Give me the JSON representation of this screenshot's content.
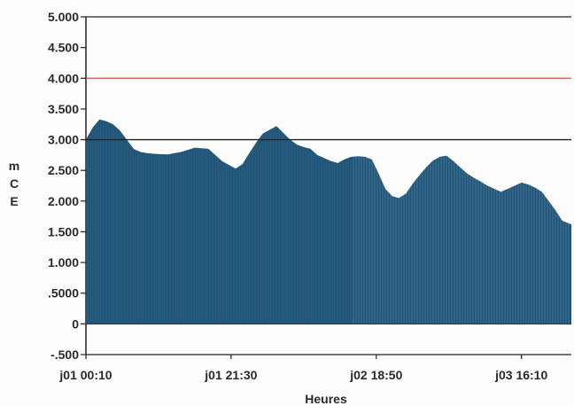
{
  "chart_data": {
    "type": "area",
    "title": "",
    "xlabel": "Heures",
    "ylabel": "mCE",
    "ylim": [
      -0.5,
      5.0
    ],
    "y_ticks": [
      "5.000",
      "4.500",
      "4.000",
      "3.500",
      "3.000",
      "2.500",
      "2.000",
      "1.500",
      "1.000",
      ".5000",
      "0",
      "-.500"
    ],
    "x_ticks": [
      "j01 00:10",
      "j01 21:30",
      "j02 18:50",
      "j03 16:10"
    ],
    "x_tick_positions": [
      0,
      21.33,
      42.67,
      64
    ],
    "x_range": [
      0,
      71.33
    ],
    "grid": false,
    "reference_lines": [
      {
        "value": 4.0,
        "color": "#d2553e"
      },
      {
        "value": 3.0,
        "color": "#222222"
      }
    ],
    "fill_color": "#1d5478",
    "series": [
      {
        "x": [
          0,
          1,
          2,
          3,
          4,
          5,
          6,
          7,
          8,
          9,
          10,
          12,
          14,
          16,
          18,
          20,
          22,
          23,
          24,
          25,
          26,
          28,
          30,
          31,
          32,
          33,
          34,
          35,
          36,
          37,
          38,
          39,
          40,
          41,
          42,
          43,
          44,
          45,
          46,
          47,
          48,
          49,
          50,
          51,
          52,
          53,
          54,
          55,
          56,
          57,
          58,
          59,
          60,
          61,
          62,
          63,
          64,
          65,
          66,
          67,
          68,
          69,
          70,
          71.33
        ],
        "values": [
          3.0,
          3.2,
          3.33,
          3.3,
          3.25,
          3.15,
          3.0,
          2.85,
          2.8,
          2.78,
          2.77,
          2.76,
          2.8,
          2.87,
          2.85,
          2.65,
          2.53,
          2.6,
          2.78,
          2.95,
          3.1,
          3.22,
          3.0,
          2.92,
          2.88,
          2.85,
          2.75,
          2.7,
          2.65,
          2.62,
          2.68,
          2.72,
          2.73,
          2.72,
          2.68,
          2.45,
          2.2,
          2.08,
          2.05,
          2.12,
          2.28,
          2.42,
          2.55,
          2.66,
          2.72,
          2.74,
          2.65,
          2.55,
          2.45,
          2.38,
          2.32,
          2.25,
          2.2,
          2.15,
          2.2,
          2.25,
          2.3,
          2.27,
          2.22,
          2.15,
          2.0,
          1.85,
          1.68,
          1.62
        ]
      }
    ]
  }
}
